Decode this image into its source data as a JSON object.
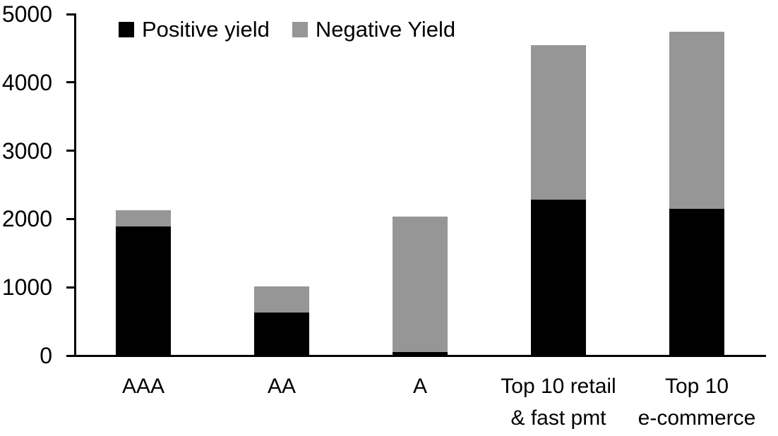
{
  "chart_data": {
    "type": "bar",
    "stacked": true,
    "title": "",
    "xlabel": "",
    "ylabel": "",
    "categories": [
      "AAA",
      "AA",
      "A",
      "Top 10 retail & fast pmt",
      "Top 10 e-commerce"
    ],
    "category_label_lines": [
      [
        "AAA"
      ],
      [
        "AA"
      ],
      [
        "A"
      ],
      [
        "Top 10 retail",
        "& fast pmt"
      ],
      [
        "Top 10",
        "e-commerce"
      ]
    ],
    "series": [
      {
        "name": "Positive yield",
        "color": "#000000",
        "values": [
          1890,
          630,
          50,
          2280,
          2150
        ]
      },
      {
        "name": "Negative Yield",
        "color": "#969696",
        "values": [
          235,
          385,
          1980,
          2265,
          2590
        ]
      }
    ],
    "stack_totals": [
      2125,
      1015,
      2030,
      4545,
      4740
    ],
    "ylim": [
      0,
      5000
    ],
    "yticks": [
      0,
      1000,
      2000,
      3000,
      4000,
      5000
    ],
    "grid": "off",
    "legend_position": "top",
    "axis_color": "#000000",
    "background_color": "#ffffff"
  }
}
